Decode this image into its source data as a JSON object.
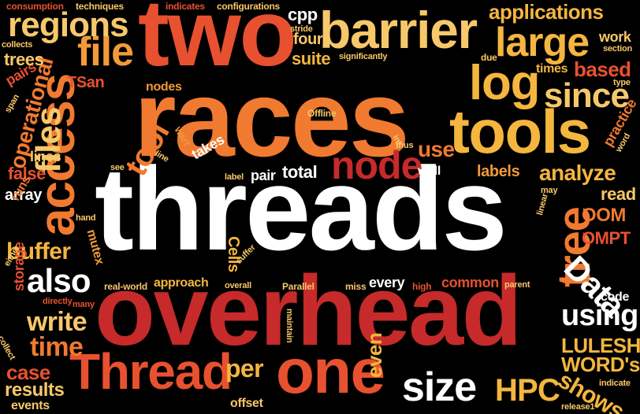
{
  "words": {
    "threads": "threads",
    "overhead": "overhead",
    "races": "races",
    "two": "two",
    "barrier": "barrier",
    "access": "access",
    "tools": "tools",
    "log": "log",
    "large": "large",
    "tree": "tree",
    "file": "file",
    "regions": "regions",
    "applications": "applications",
    "thread": "Thread",
    "one": "one",
    "size": "size",
    "hpc": "HPC",
    "also": "also",
    "node": "node",
    "files": "files",
    "tool": "tool",
    "since": "since",
    "data": "Data",
    "using": "using",
    "time": "time",
    "write": "write",
    "buffer": "buffer",
    "results": "results",
    "case": "case",
    "lulesh": "LULESH",
    "words_possessive": "WORD's",
    "shows": "shows",
    "per": "per",
    "even": "even",
    "operational": "operational",
    "cpp": "cpp",
    "four": "four",
    "suite": "suite",
    "based": "based",
    "work": "work",
    "analyze": "analyze",
    "labels": "labels",
    "read": "read",
    "oom": "OOM",
    "ompt": "OMPT",
    "use": "use",
    "false": "false",
    "array": "array",
    "total": "total",
    "pair": "pair",
    "pairs": "pairs",
    "trees": "trees",
    "tsan": "TSan",
    "nodes": "nodes",
    "times": "times",
    "practice": "practice",
    "well": "well",
    "lines": "lines",
    "cells": "Cells",
    "approach": "approach",
    "storage": "storage",
    "runs": "runs",
    "mutex": "mutex",
    "every": "every",
    "common": "common",
    "code": "code",
    "events": "events",
    "offset": "offset",
    "consumption": "consumption",
    "techniques": "techniques",
    "indicates": "indicates",
    "configurations": "configurations",
    "collects": "collects",
    "stride": "stride",
    "significantly": "significantly",
    "due": "due",
    "section": "section",
    "type": "type",
    "span": "span",
    "offline": "Offline",
    "int": "int",
    "thus": "thus",
    "word": "word",
    "takes": "takes",
    "line": "line",
    "wait": "WAIT",
    "see": "see",
    "label": "label",
    "may": "may",
    "linear": "linear",
    "hand": "hand",
    "either": "either",
    "suffer": "suffer",
    "real_world": "real-world",
    "overall": "overall",
    "parallel": "Parallel",
    "miss": "miss",
    "high": "high",
    "parent": "parent",
    "directly": "directly",
    "many": "many",
    "collect": "collect",
    "maintain": "maintain",
    "indicate": "indicate",
    "release1": "release1"
  },
  "colors": {
    "background": "#000000",
    "white": "#ffffff",
    "crimson": "#d93a2b",
    "red_orange": "#e8512f",
    "orange": "#f07a30",
    "light_orange": "#f29a3a",
    "amber": "#f4b63e",
    "pale_amber": "#f7c86a",
    "dark_red": "#c62a2a",
    "coral": "#ef6a45"
  }
}
